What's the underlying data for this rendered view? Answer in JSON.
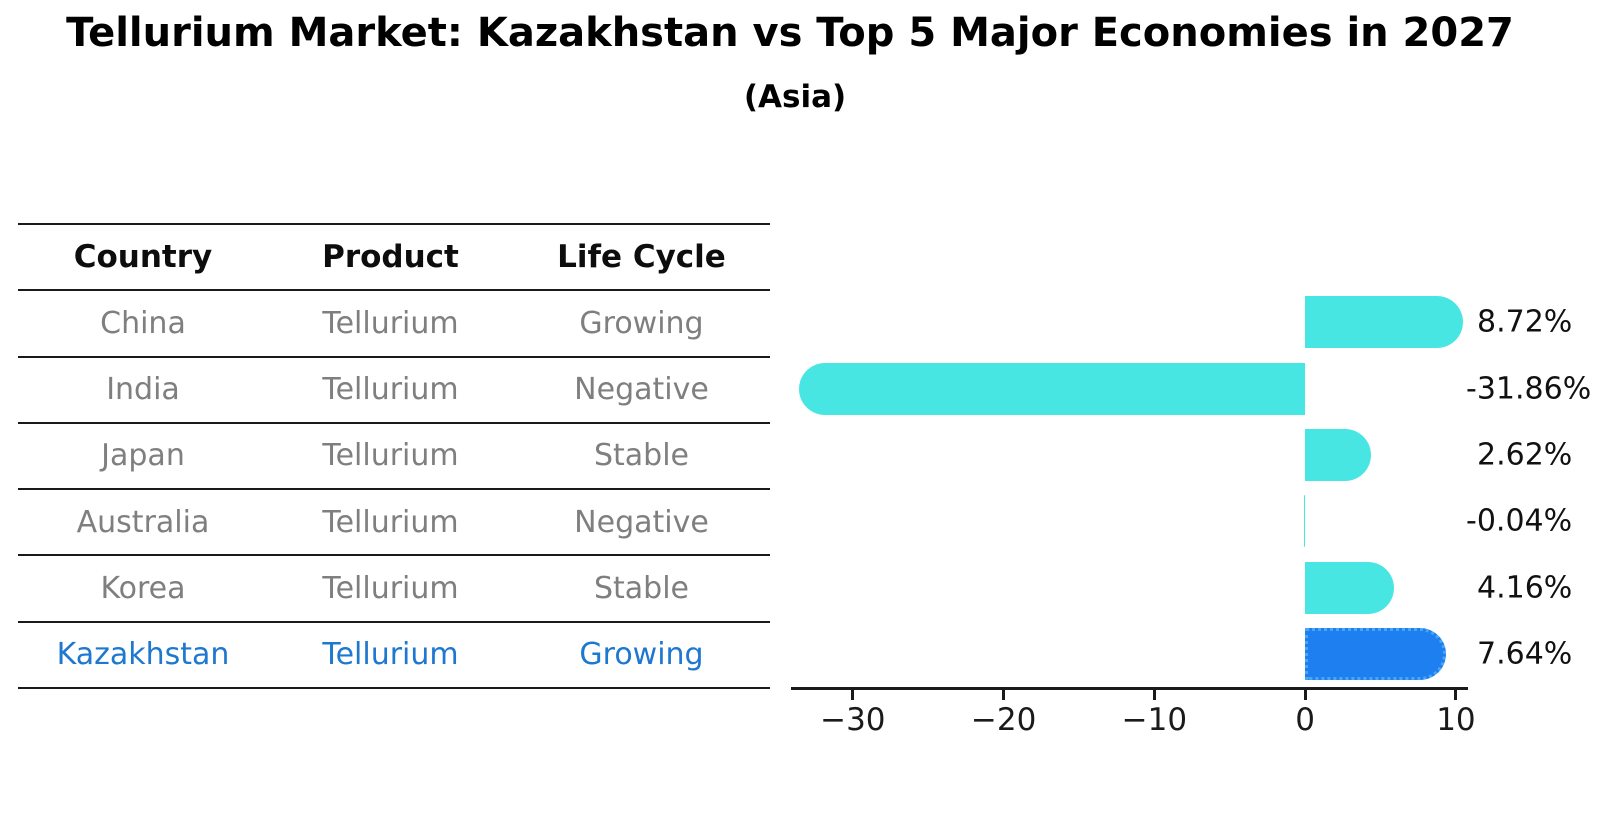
{
  "title": "Tellurium Market: Kazakhstan vs Top 5 Major Economies in 2027",
  "subtitle": "(Asia)",
  "table": {
    "headers": [
      "Country",
      "Product",
      "Life Cycle"
    ],
    "rows": [
      {
        "country": "China",
        "product": "Tellurium",
        "life_cycle": "Growing",
        "highlight": false
      },
      {
        "country": "India",
        "product": "Tellurium",
        "life_cycle": "Negative",
        "highlight": false
      },
      {
        "country": "Japan",
        "product": "Tellurium",
        "life_cycle": "Stable",
        "highlight": false
      },
      {
        "country": "Australia",
        "product": "Tellurium",
        "life_cycle": "Negative",
        "highlight": false
      },
      {
        "country": "Korea",
        "product": "Tellurium",
        "life_cycle": "Stable",
        "highlight": false
      },
      {
        "country": "Kazakhstan",
        "product": "Tellurium",
        "life_cycle": "Growing",
        "highlight": true
      }
    ]
  },
  "chart_data": {
    "type": "bar",
    "orientation": "horizontal",
    "categories": [
      "China",
      "India",
      "Japan",
      "Australia",
      "Korea",
      "Kazakhstan"
    ],
    "values": [
      8.72,
      -31.86,
      2.62,
      -0.04,
      4.16,
      7.64
    ],
    "value_labels": [
      "8.72%",
      "-31.86%",
      "2.62%",
      "-0.04%",
      "4.16%",
      "7.64%"
    ],
    "xticks": [
      -30,
      -20,
      -10,
      0,
      10
    ],
    "xlim": [
      -34.1,
      10.8
    ],
    "grid": false,
    "legend": "none",
    "bar_color": "#48E6E2",
    "highlight_color": "#1E80F0",
    "highlight_index": 5,
    "highlight_text_color": "#1f78cf",
    "body_text_color": "#7f7f7f"
  }
}
